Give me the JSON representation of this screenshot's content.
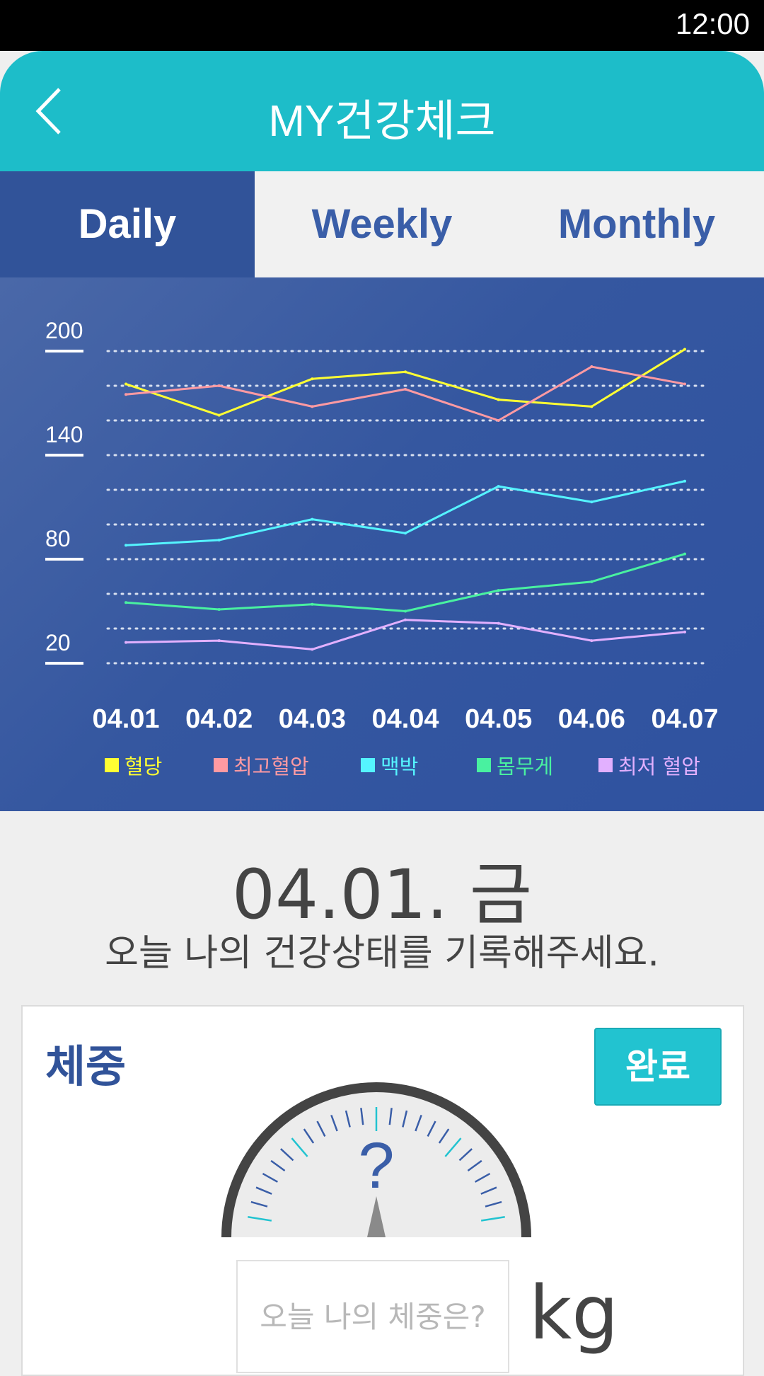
{
  "status_bar": {
    "time": "12:00"
  },
  "header": {
    "title": "MY건강체크"
  },
  "tabs": [
    {
      "label": "Daily",
      "active": true
    },
    {
      "label": "Weekly",
      "active": false
    },
    {
      "label": "Monthly",
      "active": false
    }
  ],
  "chart_data": {
    "type": "line",
    "categories": [
      "04.01",
      "04.02",
      "04.03",
      "04.04",
      "04.05",
      "04.06",
      "04.07"
    ],
    "y_ticks": [
      "200",
      "140",
      "80",
      "20"
    ],
    "ylim": [
      20,
      200
    ],
    "grid": true,
    "legend_position": "bottom",
    "series": [
      {
        "name": "혈당",
        "color": "#ffff33",
        "values": [
          181,
          163,
          184,
          188,
          172,
          168,
          201
        ]
      },
      {
        "name": "최고혈압",
        "color": "#ff9aa2",
        "values": [
          175,
          180,
          168,
          178,
          160,
          191,
          181
        ]
      },
      {
        "name": "맥박",
        "color": "#55f4ff",
        "values": [
          88,
          91,
          103,
          95,
          122,
          113,
          125
        ]
      },
      {
        "name": "몸무게",
        "color": "#49f1a0",
        "values": [
          55,
          51,
          54,
          50,
          62,
          67,
          83
        ]
      },
      {
        "name": "최저 혈압",
        "color": "#e2b0ff",
        "values": [
          32,
          33,
          28,
          45,
          43,
          33,
          38
        ]
      }
    ]
  },
  "entry": {
    "date": "04.01. 금",
    "prompt": "오늘 나의 건강상태를 기록해주세요.",
    "card_label": "체중",
    "done_label": "완료",
    "gauge_value": "?",
    "placeholder": "오늘 나의 체중은?",
    "unit": "kg"
  }
}
